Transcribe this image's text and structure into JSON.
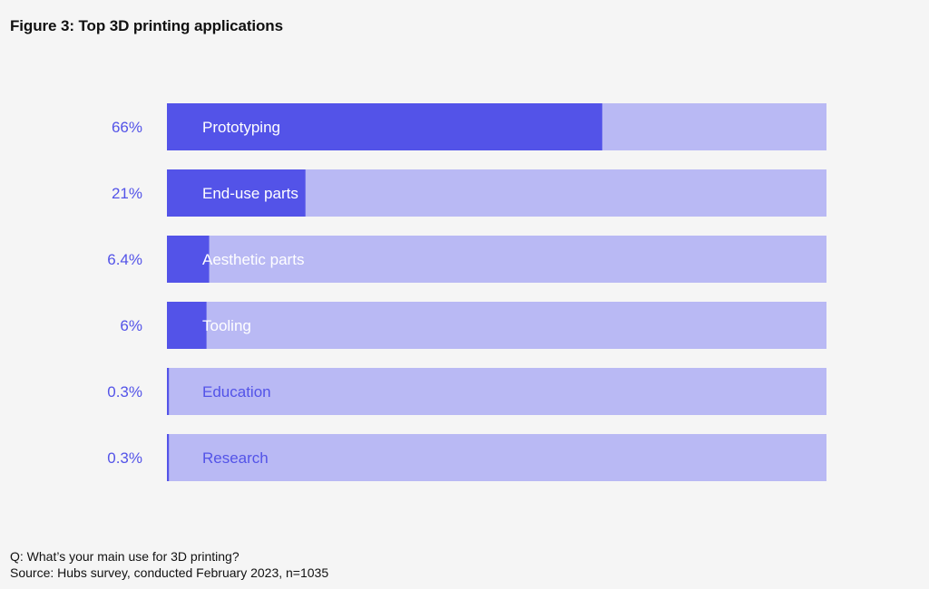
{
  "title": "Figure 3: Top 3D printing applications",
  "footer": {
    "question": "Q: What’s your main use for 3D printing?",
    "source": "Source: Hubs survey, conducted February 2023, n=1035"
  },
  "colors": {
    "bar_fill": "#5353e8",
    "bar_track": "#b9b9f4",
    "value_label": "#5353e8",
    "inside_label_light": "#ffffff",
    "inside_label_dark": "#5353e8",
    "background": "#f5f5f5"
  },
  "chart_data": {
    "type": "bar",
    "orientation": "horizontal",
    "categories": [
      "Prototyping",
      "End-use parts",
      "Aesthetic parts",
      "Tooling",
      "Education",
      "Research"
    ],
    "values": [
      66,
      21,
      6.4,
      6,
      0.3,
      0.3
    ],
    "value_labels": [
      "66%",
      "21%",
      "6.4%",
      "6%",
      "0.3%",
      "0.3%"
    ],
    "xlim": [
      0,
      100
    ],
    "unit": "%",
    "grid": false,
    "legend": "none"
  }
}
